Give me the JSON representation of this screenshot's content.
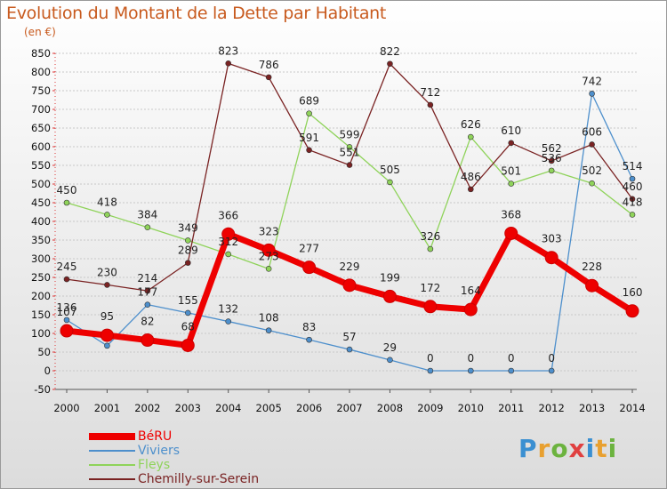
{
  "title": "Evolution du Montant de la Dette par Habitant",
  "subtitle": "(en €)",
  "logo": {
    "text": "Proxiti",
    "letters": [
      {
        "ch": "P",
        "color": "#3a8fd1"
      },
      {
        "ch": "r",
        "color": "#e8a030"
      },
      {
        "ch": "o",
        "color": "#6cb33f"
      },
      {
        "ch": "x",
        "color": "#e04040"
      },
      {
        "ch": "i",
        "color": "#3a8fd1"
      },
      {
        "ch": "t",
        "color": "#e8a030"
      },
      {
        "ch": "i",
        "color": "#6cb33f"
      }
    ]
  },
  "chart_data": {
    "type": "line",
    "x": [
      "2000",
      "2001",
      "2002",
      "2003",
      "2004",
      "2005",
      "2006",
      "2007",
      "2008",
      "2009",
      "2010",
      "2011",
      "2012",
      "2013",
      "2014"
    ],
    "ylim": [
      -50,
      850
    ],
    "yticks": [
      -50,
      0,
      50,
      100,
      150,
      200,
      250,
      300,
      350,
      400,
      450,
      500,
      550,
      600,
      650,
      700,
      750,
      800,
      850
    ],
    "grid": "horizontal",
    "legend_position": "bottom-left",
    "series": [
      {
        "name": "BéRU",
        "color": "#ee0000",
        "values": [
          107,
          95,
          82,
          68,
          366,
          323,
          277,
          229,
          199,
          172,
          164,
          368,
          303,
          228,
          160
        ]
      },
      {
        "name": "Viviers",
        "color": "#4d8fcc",
        "values": [
          136,
          67,
          177,
          155,
          132,
          108,
          83,
          57,
          29,
          0,
          0,
          0,
          0,
          742,
          514
        ]
      },
      {
        "name": "Fleys",
        "color": "#8fd35a",
        "values": [
          450,
          418,
          384,
          349,
          312,
          273,
          689,
          599,
          505,
          326,
          626,
          501,
          536,
          502,
          418
        ]
      },
      {
        "name": "Chemilly-sur-Serein",
        "color": "#7a2323",
        "values": [
          245,
          230,
          214,
          289,
          823,
          786,
          591,
          551,
          822,
          712,
          486,
          610,
          562,
          606,
          460
        ]
      }
    ],
    "labels": {
      "BéRU": [
        "107",
        "95",
        "82",
        "68",
        "366",
        "323",
        "277",
        "229",
        "199",
        "172",
        "164",
        "368",
        "303",
        "228",
        "160"
      ],
      "Viviers": [
        "136",
        "",
        "177",
        "155",
        "132",
        "108",
        "83",
        "57",
        "29",
        "0",
        "0",
        "0",
        "0",
        "742",
        "514"
      ],
      "Fleys": [
        "450",
        "418",
        "384",
        "349",
        "312",
        "273",
        "689",
        "599",
        "505",
        "326",
        "626",
        "501",
        "536",
        "502",
        "418"
      ],
      "Chemilly-sur-Serein": [
        "245",
        "230",
        "214",
        "289",
        "823",
        "786",
        "591",
        "551",
        "822",
        "712",
        "486",
        "610",
        "562",
        "606",
        "460"
      ]
    }
  }
}
